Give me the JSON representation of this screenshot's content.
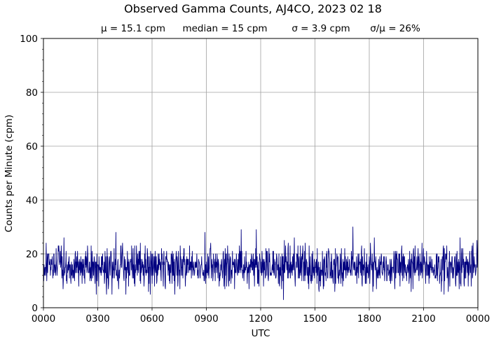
{
  "chart_data": {
    "type": "line",
    "title": "Observed Gamma Counts, AJ4CO, 2023 02 18",
    "subtitle": {
      "mean": "μ = 15.1 cpm",
      "median": "median = 15 cpm",
      "sigma": "σ = 3.9 cpm",
      "cv": "σ/μ = 26%"
    },
    "xlabel": "UTC",
    "ylabel": "Counts per Minute (cpm)",
    "x_tick_labels": [
      "0000",
      "0300",
      "0600",
      "0900",
      "1200",
      "1500",
      "1800",
      "2100",
      "0000"
    ],
    "y_tick_labels": [
      "0",
      "20",
      "40",
      "60",
      "80",
      "100"
    ],
    "xlim_hours": [
      0,
      24
    ],
    "ylim": [
      0,
      100
    ],
    "grid": true,
    "series": [
      {
        "color": "#000080",
        "sampling_minutes": 1,
        "mean": 15.1,
        "median": 15,
        "std": 3.9,
        "min": 3,
        "max": 30,
        "notable_points": [
          {
            "time": "0400",
            "value": 28
          },
          {
            "time": "0855",
            "value": 28
          },
          {
            "time": "1055",
            "value": 29
          },
          {
            "time": "1145",
            "value": 29
          },
          {
            "time": "1315",
            "value": 3
          },
          {
            "time": "1705",
            "value": 30
          },
          {
            "time": "2300",
            "value": 26
          }
        ]
      }
    ]
  }
}
